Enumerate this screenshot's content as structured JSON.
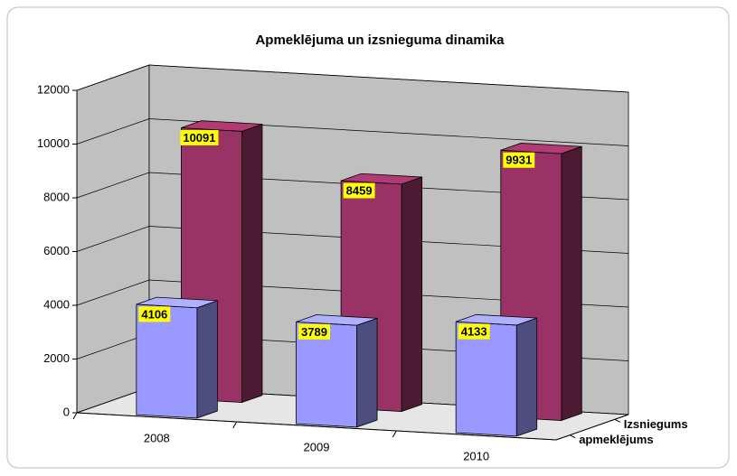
{
  "chart_data": {
    "type": "bar3d",
    "title": "Apmeklējuma un izsnieguma dinamika",
    "categories": [
      "2008",
      "2009",
      "2010"
    ],
    "series": [
      {
        "name": "apmeklējums",
        "color": "#9999ff",
        "values": [
          4106,
          3789,
          4133
        ]
      },
      {
        "name": "Izsniegums",
        "color": "#993366",
        "values": [
          10091,
          8459,
          9931
        ]
      }
    ],
    "ylim": [
      0,
      12000
    ],
    "yticks": [
      0,
      2000,
      4000,
      6000,
      8000,
      10000,
      12000
    ],
    "grid": true
  }
}
